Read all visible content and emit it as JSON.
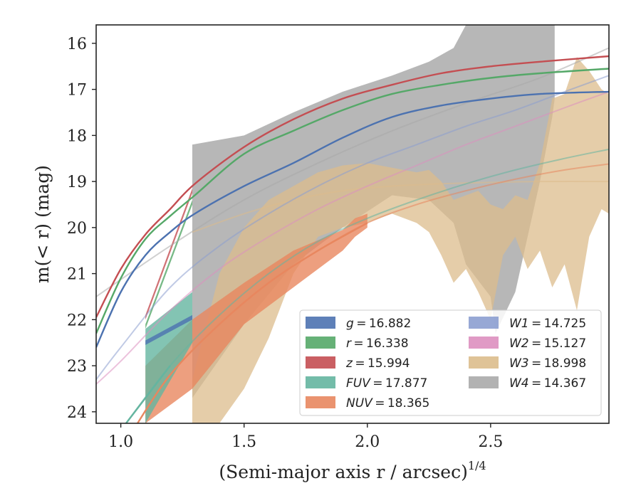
{
  "chart_data": {
    "type": "area",
    "xlabel": "(Semi-major axis r / arcsec)",
    "xlabel_exponent": "1/4",
    "ylabel": "m(< r) (mag)",
    "xlim": [
      0.9,
      2.98
    ],
    "ylim": [
      24.25,
      15.6
    ],
    "y_inverted": true,
    "grid": false,
    "legend_position": "lower-right",
    "x_ticks": [
      "1.0",
      "1.5",
      "2.0",
      "2.5"
    ],
    "x_tick_values": [
      1.0,
      1.5,
      2.0,
      2.5
    ],
    "y_ticks": [
      "16",
      "17",
      "18",
      "19",
      "20",
      "21",
      "22",
      "23",
      "24"
    ],
    "y_tick_values": [
      16,
      17,
      18,
      19,
      20,
      21,
      22,
      23,
      24
    ],
    "series": [
      {
        "name": "g = 16.882",
        "var": "g",
        "value": "16.882",
        "color": "#4c72b0",
        "data_x": [
          1.1,
          1.29
        ],
        "data_upper": [
          22.45,
          21.9
        ],
        "data_lower": [
          22.55,
          22.0
        ],
        "model_x": [
          0.9,
          1.0,
          1.1,
          1.2,
          1.3,
          1.5,
          1.7,
          1.9,
          2.1,
          2.3,
          2.5,
          2.7,
          2.98
        ],
        "model_y": [
          22.6,
          21.4,
          20.6,
          20.1,
          19.7,
          19.1,
          18.6,
          18.05,
          17.6,
          17.35,
          17.2,
          17.1,
          17.05
        ],
        "model_solid_to": 2.98
      },
      {
        "name": "r = 16.338",
        "var": "r",
        "value": "16.338",
        "color": "#55a868",
        "data_x": [
          1.1,
          1.29
        ],
        "data_upper": [
          22.1,
          19.4
        ],
        "data_lower": [
          22.2,
          19.5
        ],
        "model_x": [
          0.9,
          1.0,
          1.1,
          1.2,
          1.3,
          1.5,
          1.7,
          1.9,
          2.1,
          2.3,
          2.5,
          2.7,
          2.98
        ],
        "model_y": [
          22.3,
          21.1,
          20.25,
          19.75,
          19.3,
          18.4,
          17.9,
          17.45,
          17.1,
          16.9,
          16.75,
          16.65,
          16.55
        ],
        "model_solid_to": 2.98
      },
      {
        "name": "z = 15.994",
        "var": "z",
        "value": "15.994",
        "color": "#c44e52",
        "data_x": [
          1.1,
          1.29
        ],
        "data_upper": [
          21.9,
          19.15
        ],
        "data_lower": [
          22.0,
          19.25
        ],
        "model_x": [
          0.9,
          1.0,
          1.1,
          1.2,
          1.3,
          1.5,
          1.7,
          1.9,
          2.1,
          2.3,
          2.5,
          2.7,
          2.98
        ],
        "model_y": [
          21.95,
          20.9,
          20.15,
          19.6,
          19.05,
          18.25,
          17.65,
          17.2,
          16.9,
          16.65,
          16.5,
          16.4,
          16.28
        ],
        "model_solid_to": 2.98
      },
      {
        "name": "FUV = 17.877",
        "var": "FUV",
        "value": "17.877",
        "color": "#64b5a0",
        "data_x": [
          1.1,
          1.29
        ],
        "data_upper": [
          22.2,
          21.4
        ],
        "data_lower": [
          24.25,
          22.5
        ],
        "model_x": [
          1.0,
          1.2,
          1.4,
          1.6,
          1.8,
          2.0,
          2.2,
          2.4,
          2.6,
          2.8,
          2.98
        ],
        "model_y": [
          24.4,
          23.0,
          21.9,
          21.0,
          20.3,
          19.8,
          19.4,
          19.05,
          18.75,
          18.5,
          18.3
        ],
        "model_solid_to": 1.29
      },
      {
        "name": "NUV = 18.365",
        "var": "NUV",
        "value": "18.365",
        "color": "#e8875f",
        "data_x": [
          1.1,
          1.29,
          1.5,
          1.7,
          1.9,
          1.95,
          2.0
        ],
        "data_upper": [
          23.0,
          22.0,
          21.2,
          20.5,
          20.05,
          19.8,
          19.7
        ],
        "data_lower": [
          24.25,
          23.5,
          22.1,
          21.3,
          20.5,
          20.2,
          20.0
        ],
        "model_x": [
          1.05,
          1.2,
          1.4,
          1.6,
          1.8,
          2.0,
          2.2,
          2.4,
          2.6,
          2.8,
          2.98
        ],
        "model_y": [
          24.4,
          23.2,
          22.1,
          21.2,
          20.5,
          19.9,
          19.5,
          19.2,
          18.95,
          18.75,
          18.62
        ],
        "model_solid_to": 2.0
      },
      {
        "name": "W1 = 14.725",
        "var": "W1",
        "value": "14.725",
        "color": "#8c9fd0",
        "data_x": [],
        "data_upper": [],
        "data_lower": [],
        "model_x": [
          0.9,
          1.0,
          1.2,
          1.4,
          1.6,
          1.8,
          2.0,
          2.2,
          2.4,
          2.6,
          2.8,
          2.98
        ],
        "model_y": [
          23.3,
          22.6,
          21.3,
          20.4,
          19.7,
          19.1,
          18.6,
          18.2,
          17.8,
          17.45,
          17.05,
          16.7
        ],
        "model_solid_to": 0.9
      },
      {
        "name": "W2 = 15.127",
        "var": "W2",
        "value": "15.127",
        "color": "#dd8fbf",
        "data_x": [],
        "data_upper": [],
        "data_lower": [],
        "model_x": [
          0.9,
          1.0,
          1.2,
          1.4,
          1.6,
          1.8,
          2.0,
          2.2,
          2.4,
          2.6,
          2.8,
          2.98
        ],
        "model_y": [
          23.4,
          22.9,
          21.8,
          20.9,
          20.2,
          19.6,
          19.1,
          18.65,
          18.2,
          17.8,
          17.4,
          17.05
        ],
        "model_solid_to": 0.9
      },
      {
        "name": "W3 = 18.998",
        "var": "W3",
        "value": "18.998",
        "color": "#dcbc8c",
        "data_x": [
          1.29,
          1.4,
          1.5,
          1.6,
          1.7,
          1.8,
          1.9,
          2.0,
          2.1,
          2.2,
          2.25,
          2.3,
          2.35,
          2.4,
          2.45,
          2.5,
          2.55,
          2.6,
          2.65,
          2.7,
          2.75,
          2.8,
          2.85,
          2.9,
          2.95,
          2.98
        ],
        "data_upper": [
          23.3,
          21.0,
          20.0,
          19.4,
          19.1,
          18.8,
          18.65,
          18.6,
          18.7,
          18.8,
          18.75,
          19.0,
          19.4,
          19.3,
          19.2,
          19.5,
          19.6,
          19.3,
          19.4,
          18.6,
          17.2,
          17.1,
          16.3,
          16.6,
          17.0,
          17.1
        ],
        "data_lower": [
          24.25,
          24.25,
          23.5,
          22.4,
          21.0,
          20.2,
          20.0,
          19.9,
          19.7,
          19.9,
          20.1,
          20.6,
          21.2,
          20.9,
          21.4,
          22.0,
          20.6,
          20.2,
          20.9,
          20.5,
          21.3,
          20.8,
          21.8,
          20.2,
          19.6,
          19.7
        ],
        "model_x": [
          1.29,
          1.5,
          1.7,
          1.9,
          2.1,
          2.3,
          2.5,
          2.7,
          2.98
        ],
        "model_y": [
          20.1,
          19.7,
          19.4,
          19.2,
          19.1,
          19.05,
          19.02,
          19.0,
          19.0
        ],
        "model_solid_to": 1.29
      },
      {
        "name": "W4 = 14.367",
        "var": "W4",
        "value": "14.367",
        "color": "#aaaaaa",
        "data_x": [
          1.29,
          1.5,
          1.7,
          1.9,
          2.1,
          2.25,
          2.35,
          2.4,
          2.5,
          2.52,
          2.6,
          2.7,
          2.75,
          2.76
        ],
        "data_upper": [
          18.2,
          18.0,
          17.5,
          17.05,
          16.7,
          16.4,
          16.1,
          15.6,
          15.6,
          15.6,
          15.6,
          15.6,
          15.6,
          15.6
        ],
        "data_lower": [
          23.7,
          22.1,
          20.8,
          20.0,
          19.3,
          19.4,
          19.9,
          20.8,
          21.5,
          22.3,
          21.4,
          19.0,
          17.6,
          17.2
        ],
        "model_x": [
          0.9,
          1.2,
          1.5,
          1.8,
          2.1,
          2.4,
          2.7,
          2.98
        ],
        "model_y": [
          21.5,
          20.4,
          19.4,
          18.6,
          17.9,
          17.3,
          16.75,
          16.1
        ],
        "model_solid_to": 0.9
      }
    ]
  }
}
